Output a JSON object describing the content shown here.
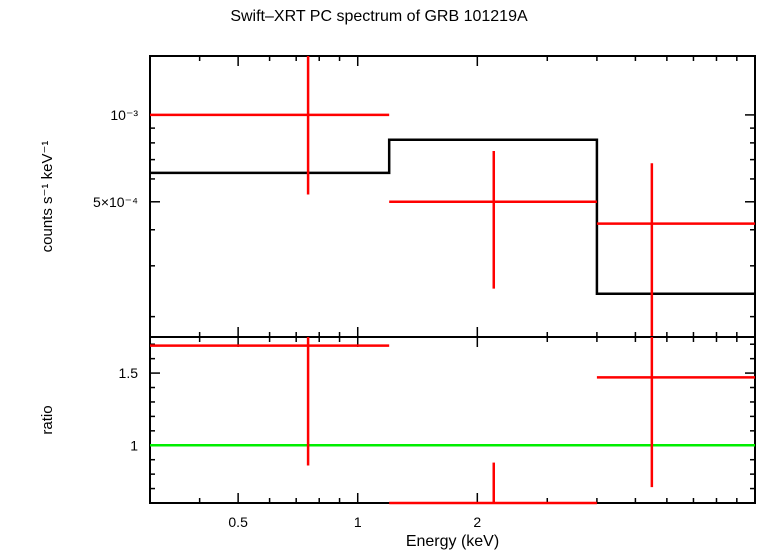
{
  "chart_data": {
    "type": "scatter",
    "title": "Swift–XRT PC spectrum of GRB 101219A",
    "xlabel": "Energy (keV)",
    "xscale": "log",
    "xlim": [
      0.3,
      10
    ],
    "xticks": [
      {
        "value": 0.5,
        "label": "0.5"
      },
      {
        "value": 1,
        "label": "1"
      },
      {
        "value": 2,
        "label": "2"
      }
    ],
    "panels": [
      {
        "name": "spectrum",
        "ylabel": "counts s⁻¹ keV⁻¹",
        "yscale": "log",
        "ylim": [
          0.00017,
          0.0016
        ],
        "yticks": [
          {
            "value": 0.001,
            "label": "10⁻³"
          },
          {
            "value": 0.0005,
            "label": "5×10⁻⁴"
          }
        ],
        "data": {
          "color": "#ff0000",
          "points": [
            {
              "x": 0.75,
              "xerr": [
                0.3,
                1.2
              ],
              "y": 0.001,
              "yerr": [
                0.00053,
                0.0016
              ]
            },
            {
              "x": 2.2,
              "xerr": [
                1.2,
                4.0
              ],
              "y": 0.0005,
              "yerr": [
                0.00025,
                0.00075
              ]
            },
            {
              "x": 5.5,
              "xerr": [
                4.0,
                10
              ],
              "y": 0.00042,
              "yerr": [
                0.00017,
                0.00068
              ]
            }
          ]
        },
        "model": {
          "color": "#000000",
          "steps": [
            {
              "x0": 0.3,
              "x1": 1.2,
              "y": 0.00063
            },
            {
              "x0": 1.2,
              "x1": 4.0,
              "y": 0.00082
            },
            {
              "x0": 4.0,
              "x1": 10,
              "y": 0.00024
            }
          ]
        }
      },
      {
        "name": "ratio",
        "ylabel": "ratio",
        "yscale": "linear",
        "ylim": [
          0.6,
          1.75
        ],
        "yticks": [
          {
            "value": 1,
            "label": "1"
          },
          {
            "value": 1.5,
            "label": "1.5"
          }
        ],
        "reference_line": {
          "y": 1,
          "color": "#00ee00"
        },
        "data": {
          "color": "#ff0000",
          "points": [
            {
              "x": 0.75,
              "xerr": [
                0.3,
                1.2
              ],
              "y": 1.69,
              "yerr": [
                0.86,
                1.75
              ]
            },
            {
              "x": 2.2,
              "xerr": [
                1.2,
                4.0
              ],
              "y": 0.6,
              "yerr": [
                0.6,
                0.88
              ]
            },
            {
              "x": 5.5,
              "xerr": [
                4.0,
                10
              ],
              "y": 1.47,
              "yerr": [
                0.71,
                1.75
              ]
            }
          ]
        }
      }
    ]
  }
}
